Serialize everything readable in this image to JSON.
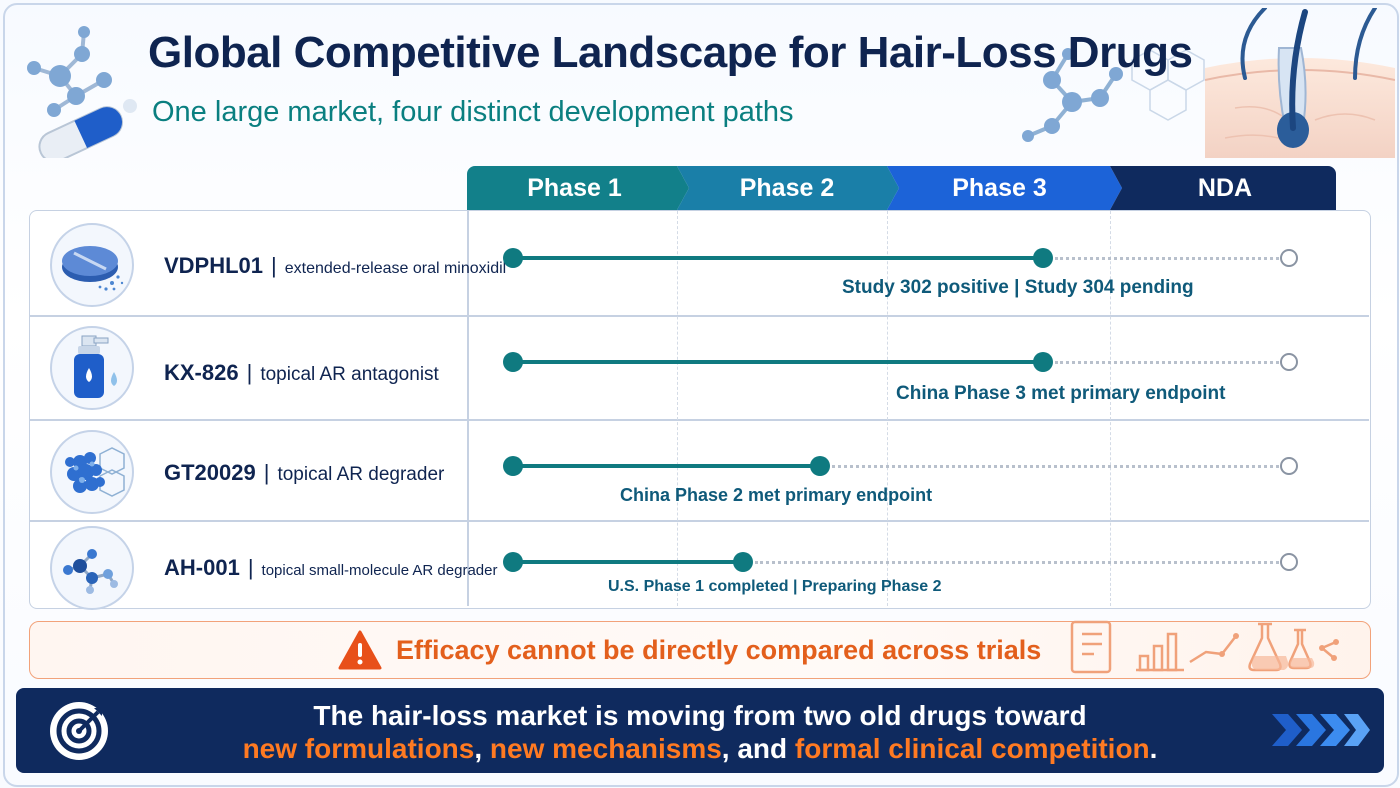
{
  "header": {
    "title": "Global Competitive Landscape for Hair-Loss Drugs",
    "subtitle": "One large market, four distinct development paths"
  },
  "phases": [
    "Phase 1",
    "Phase 2",
    "Phase 3",
    "NDA"
  ],
  "colors": {
    "phase_1": "#12808a",
    "phase_2": "#1a7fa8",
    "phase_3": "#1c63d8",
    "nda": "#0f2a5e",
    "track": "#0f7a80",
    "caution": "#e35f1c",
    "highlight": "#ff7a22"
  },
  "drugs": [
    {
      "name": "VDPHL01",
      "separator": "|",
      "description": "extended-release oral minoxidil",
      "icon": "tablet-icon",
      "progress_phase": 3,
      "status": "Study 302 positive | Study 304 pending"
    },
    {
      "name": "KX-826",
      "separator": "|",
      "description": "topical AR antagonist",
      "icon": "pump-bottle-icon",
      "progress_phase": 3,
      "status": "China Phase 3 met primary endpoint"
    },
    {
      "name": "GT20029",
      "separator": "|",
      "description": "topical AR degrader",
      "icon": "molecule-cluster-icon",
      "progress_phase": 2,
      "status": "China Phase 2 met primary endpoint"
    },
    {
      "name": "AH-001",
      "separator": "|",
      "description": "topical small-molecule AR degrader",
      "icon": "small-molecule-icon",
      "progress_phase": 1.75,
      "status": "U.S. Phase 1 completed | Preparing Phase 2"
    }
  ],
  "caution": {
    "text": "Efficacy cannot be directly compared across trials",
    "icon": "warning-icon"
  },
  "banner": {
    "line1": "The hair-loss market is moving from two old drugs toward",
    "line2": {
      "part1": "new formulations",
      "sep1": ", ",
      "part2": "new mechanisms",
      "sep2": ", and ",
      "part3": "formal clinical competition",
      "end": "."
    },
    "icon": "target-icon",
    "arrows_icon": "chevron-arrows-icon"
  }
}
